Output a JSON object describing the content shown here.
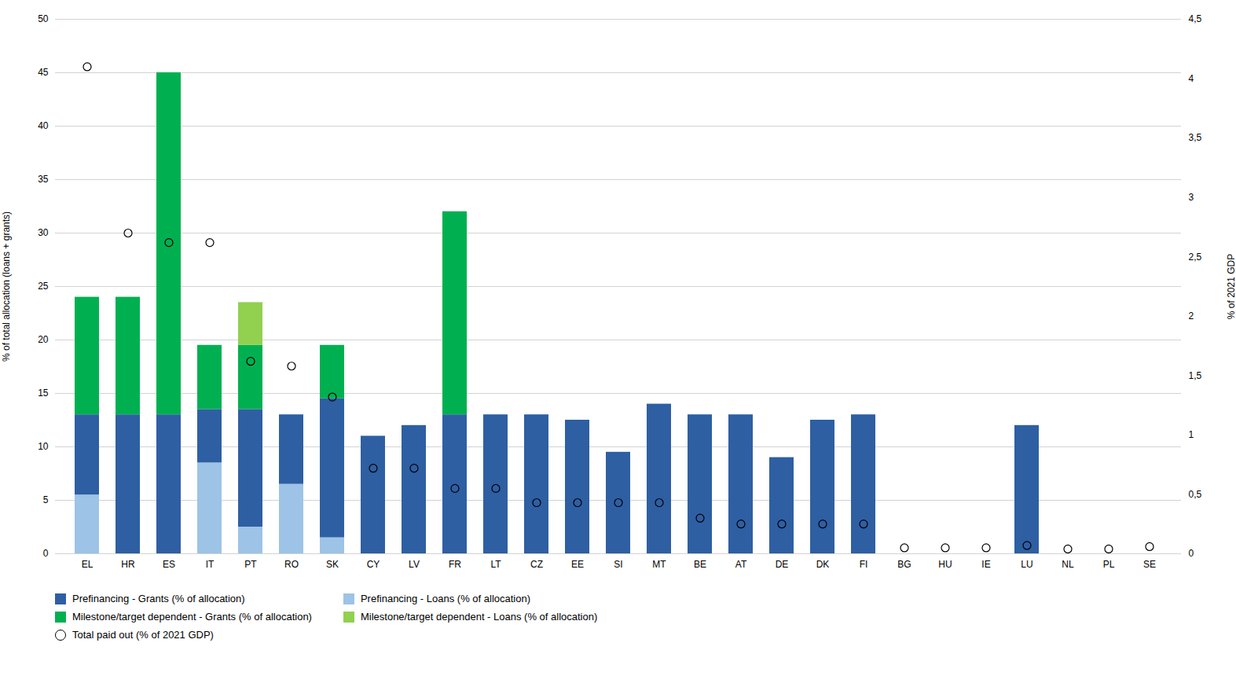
{
  "chart_data": {
    "type": "bar",
    "stacked": true,
    "categories": [
      "EL",
      "HR",
      "ES",
      "IT",
      "PT",
      "RO",
      "SK",
      "CY",
      "LV",
      "FR",
      "LT",
      "CZ",
      "EE",
      "SI",
      "MT",
      "BE",
      "AT",
      "DE",
      "DK",
      "FI",
      "BG",
      "HU",
      "IE",
      "LU",
      "NL",
      "PL",
      "SE"
    ],
    "series": [
      {
        "name": "Prefinancing - Loans (% of allocation)",
        "color": "#9DC3E6",
        "values": [
          5.5,
          0.0,
          0.0,
          8.5,
          2.5,
          6.5,
          1.5,
          0.0,
          0.0,
          0.0,
          0.0,
          0.0,
          0.0,
          0.0,
          0.0,
          0.0,
          0.0,
          0.0,
          0.0,
          0.0,
          0.0,
          0.0,
          0.0,
          0.0,
          0.0,
          0.0,
          0.0
        ]
      },
      {
        "name": "Prefinancing - Grants (% of allocation)",
        "color": "#2E5FA3",
        "values": [
          7.5,
          13.0,
          13.0,
          5.0,
          11.0,
          6.5,
          13.0,
          11.0,
          12.0,
          13.0,
          13.0,
          13.0,
          12.5,
          9.5,
          14.0,
          13.0,
          13.0,
          9.0,
          12.5,
          13.0,
          0.0,
          0.0,
          0.0,
          12.0,
          0.0,
          0.0,
          0.0
        ]
      },
      {
        "name": "Milestone/target dependent - Grants (% of allocation)",
        "color": "#00B050",
        "values": [
          11.0,
          11.0,
          32.0,
          6.0,
          6.0,
          0.0,
          5.0,
          0.0,
          0.0,
          19.0,
          0.0,
          0.0,
          0.0,
          0.0,
          0.0,
          0.0,
          0.0,
          0.0,
          0.0,
          0.0,
          0.0,
          0.0,
          0.0,
          0.0,
          0.0,
          0.0,
          0.0
        ]
      },
      {
        "name": "Milestone/target dependent - Loans (% of allocation)",
        "color": "#92D050",
        "values": [
          0.0,
          0.0,
          0.0,
          0.0,
          4.0,
          0.0,
          0.0,
          0.0,
          0.0,
          0.0,
          0.0,
          0.0,
          0.0,
          0.0,
          0.0,
          0.0,
          0.0,
          0.0,
          0.0,
          0.0,
          0.0,
          0.0,
          0.0,
          0.0,
          0.0,
          0.0,
          0.0
        ]
      },
      {
        "name": "Total paid out (% of 2021 GDP)",
        "type": "scatter",
        "axis": "y2",
        "color": "black",
        "marker": "circle",
        "values": [
          4.1,
          2.7,
          2.62,
          2.62,
          1.62,
          1.58,
          1.32,
          0.72,
          0.72,
          0.55,
          0.55,
          0.43,
          0.43,
          0.43,
          0.43,
          0.3,
          0.25,
          0.25,
          0.25,
          0.25,
          0.05,
          0.05,
          0.05,
          0.07,
          0.04,
          0.04,
          0.06
        ]
      }
    ],
    "ylabel": "% of total allocation (loans + grants)",
    "y2label": "% of 2021 GDP",
    "ylim": [
      0,
      50
    ],
    "yticks": [
      0,
      5,
      10,
      15,
      20,
      25,
      30,
      35,
      40,
      45,
      50
    ],
    "y2lim": [
      0,
      4.5
    ],
    "y2ticks": [
      0,
      {
        "value": 0.5,
        "label": "0,5"
      },
      1,
      {
        "value": 1.5,
        "label": "1,5"
      },
      2,
      {
        "value": 2.5,
        "label": "2,5"
      },
      3,
      {
        "value": 3.5,
        "label": "3,5"
      },
      4,
      {
        "value": 4.5,
        "label": "4,5"
      }
    ],
    "grid": true,
    "legend": "bottom"
  }
}
